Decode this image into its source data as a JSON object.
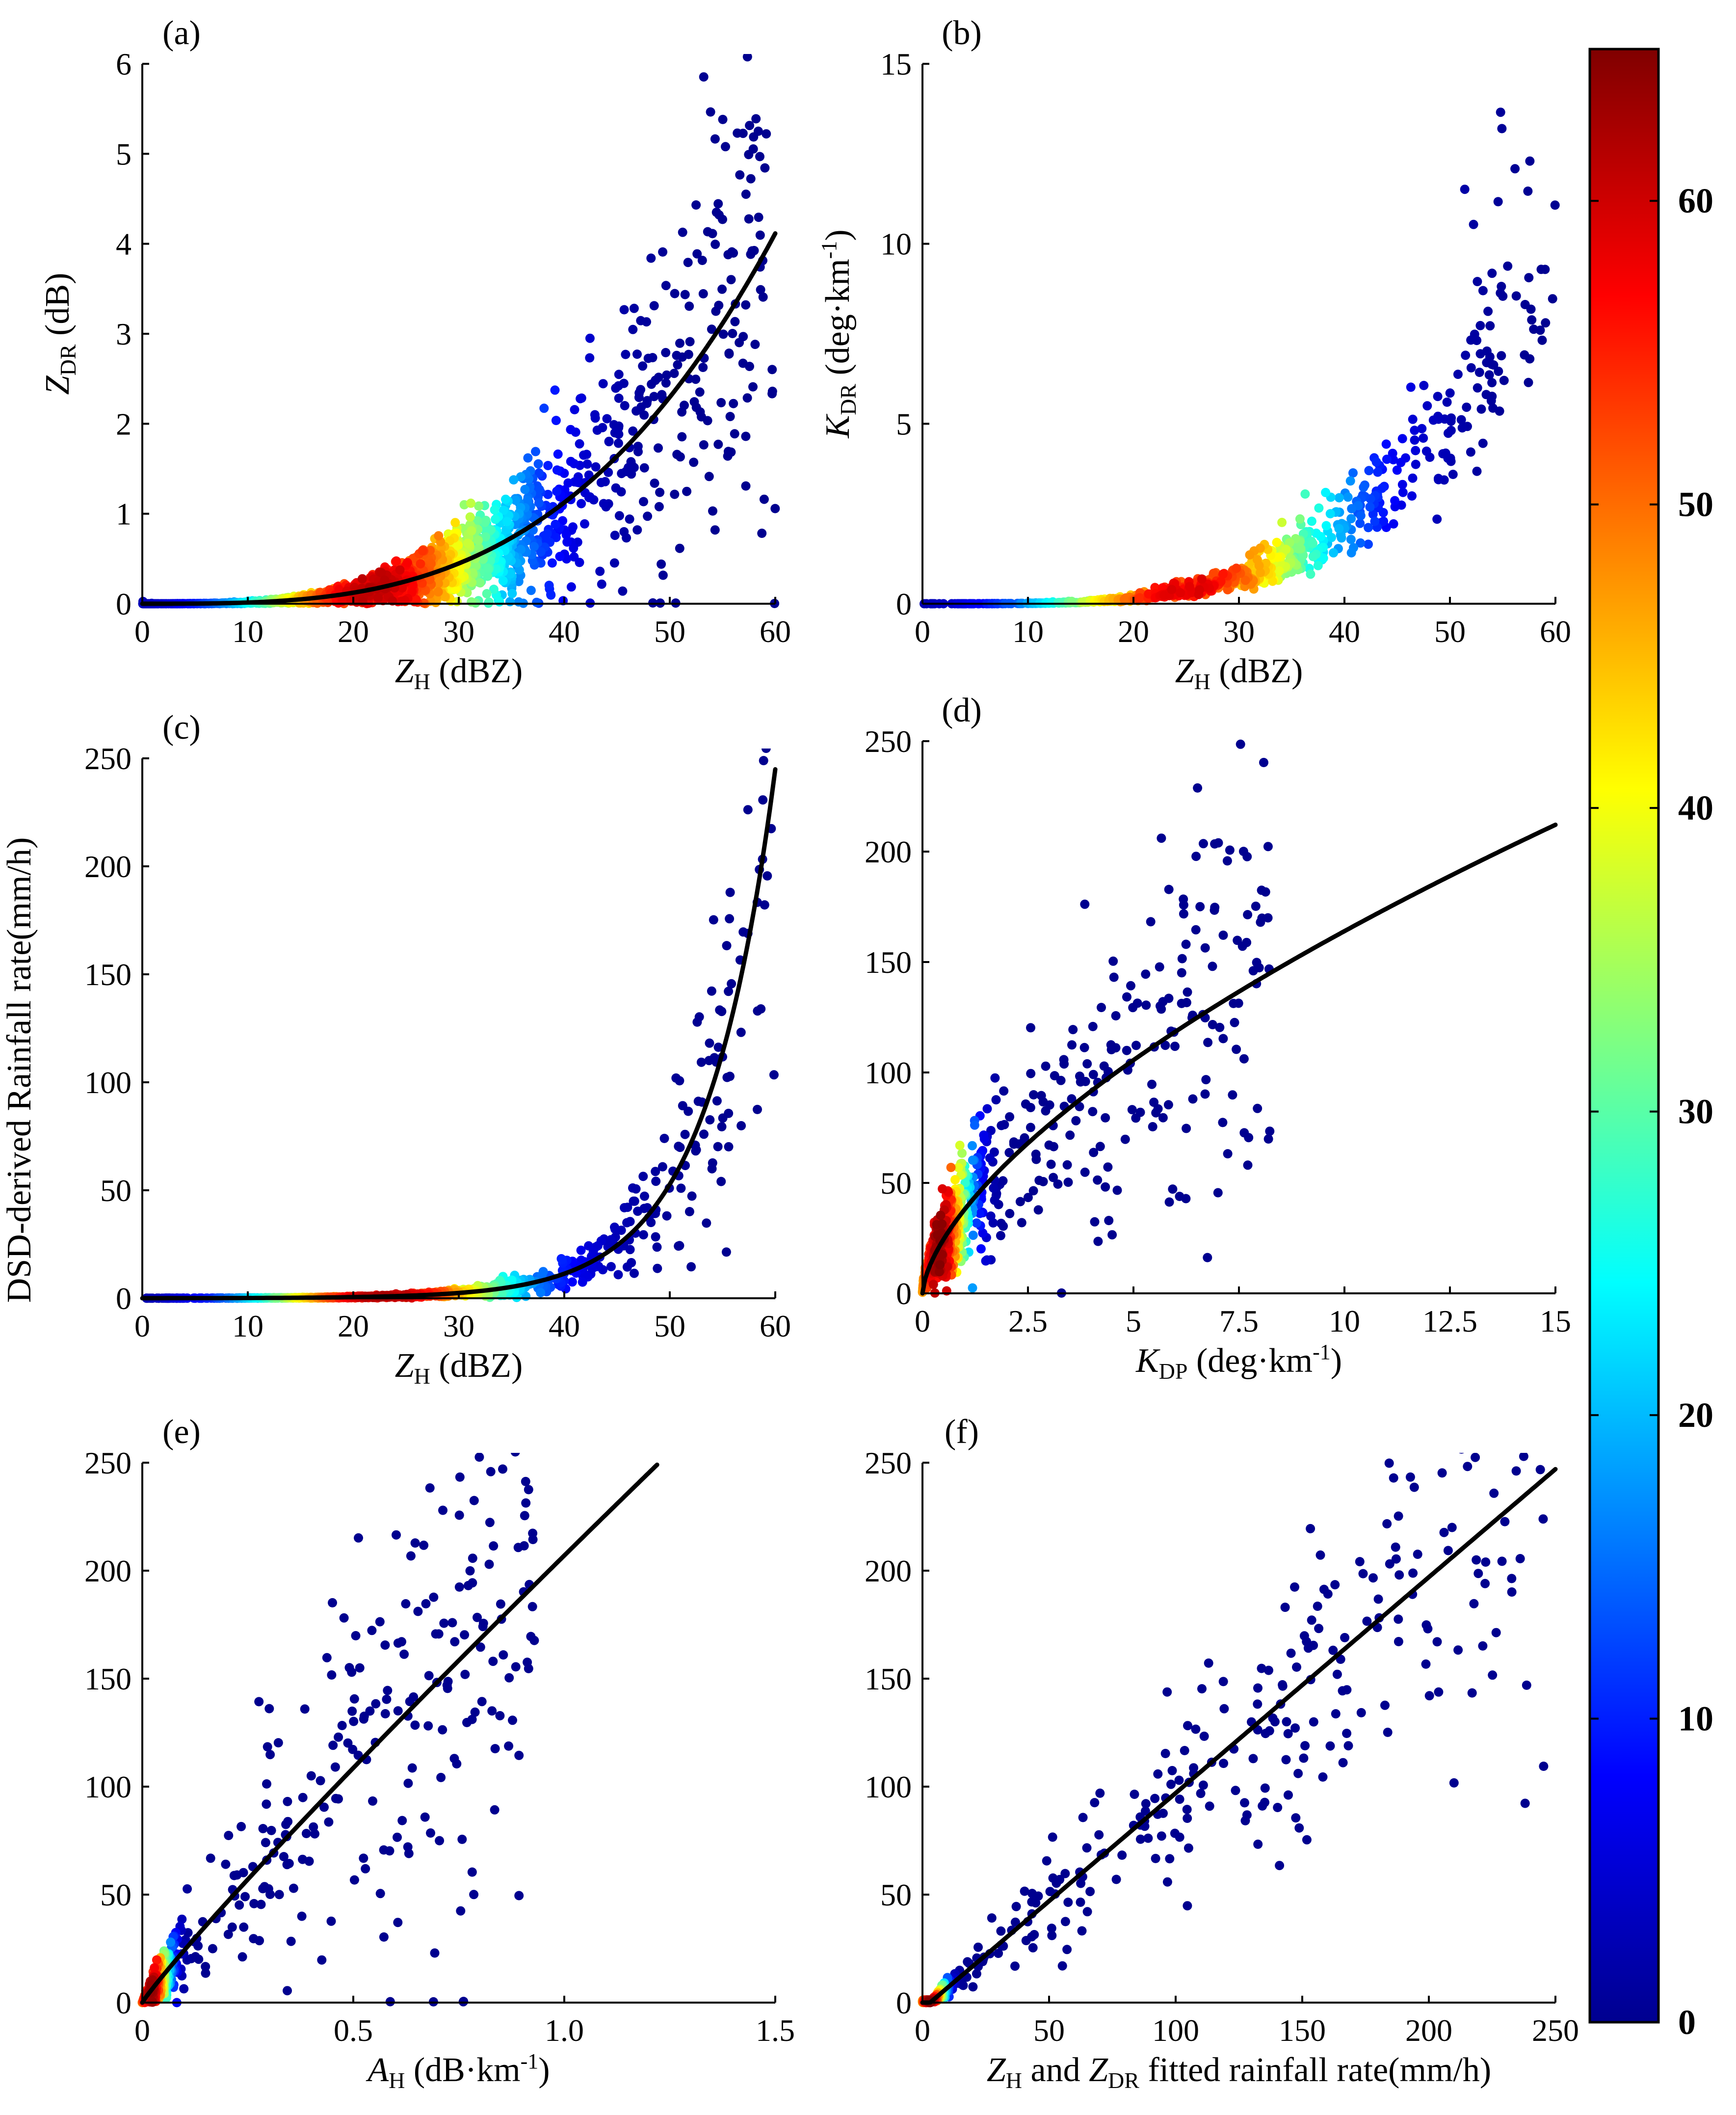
{
  "figure": {
    "shared_ylabel": "DSD-derived Rainfall rate(mm/h)",
    "colorbar": {
      "ticks": [
        0,
        10,
        20,
        30,
        40,
        50,
        60
      ],
      "min": 0,
      "max": 65,
      "stops": [
        "#00008f",
        "#0000ff",
        "#0080ff",
        "#00ffff",
        "#80ff80",
        "#ffff00",
        "#ff8000",
        "#ff0000",
        "#800000"
      ]
    }
  },
  "chart_data": [
    {
      "id": "a",
      "panel_label": "(a)",
      "type": "scatter",
      "xlabel": {
        "main": "Z",
        "sub": "H",
        "rest": " (dBZ)"
      },
      "ylabel": {
        "main": "Z",
        "sub": "DR",
        "rest": " (dB)"
      },
      "xlim": [
        0,
        60
      ],
      "ylim": [
        0,
        6
      ],
      "xticks": [
        0,
        10,
        20,
        30,
        40,
        50,
        60
      ],
      "yticks": [
        0,
        1,
        2,
        3,
        4,
        5,
        6
      ],
      "xtick_labels": [
        "0",
        "10",
        "20",
        "30",
        "40",
        "50",
        "60"
      ],
      "ytick_labels": [
        "0",
        "1",
        "2",
        "3",
        "4",
        "5",
        "6"
      ],
      "fit": {
        "kind": "power",
        "a": 8.4e-06,
        "b": 3.2,
        "offset": 0,
        "xrange": [
          0,
          60
        ]
      },
      "scatter": {
        "seed": 11,
        "n": 2200,
        "x_center": 22,
        "x_spread": 9,
        "spread_kind": "ratio",
        "spread": 0.45,
        "peak_density": 62
      }
    },
    {
      "id": "b",
      "panel_label": "(b)",
      "type": "scatter",
      "xlabel": {
        "main": "Z",
        "sub": "H",
        "rest": " (dBZ)"
      },
      "ylabel": {
        "main": "K",
        "sub": "DR",
        "rest": " (deg·km",
        "sup": "-1",
        "tail": ")"
      },
      "xlim": [
        0,
        60
      ],
      "ylim": [
        0,
        15
      ],
      "xticks": [
        0,
        10,
        20,
        30,
        40,
        50,
        60
      ],
      "yticks": [
        0,
        5,
        10,
        15
      ],
      "xtick_labels": [
        "0",
        "10",
        "20",
        "30",
        "40",
        "50",
        "60"
      ],
      "ytick_labels": [
        "0",
        "5",
        "10",
        "15"
      ],
      "fit": null,
      "scatter": {
        "seed": 23,
        "n": 900,
        "x_center": 25,
        "x_spread": 10,
        "spread_kind": "exp",
        "spread": 0.25,
        "peak_density": 60
      }
    },
    {
      "id": "c",
      "panel_label": "(c)",
      "type": "scatter",
      "xlabel": {
        "main": "Z",
        "sub": "H",
        "rest": " (dBZ)"
      },
      "ylabel": null,
      "xlim": [
        0,
        60
      ],
      "ylim": [
        0,
        250
      ],
      "xticks": [
        0,
        10,
        20,
        30,
        40,
        50,
        60
      ],
      "yticks": [
        0,
        50,
        100,
        150,
        200,
        250
      ],
      "xtick_labels": [
        "0",
        "10",
        "20",
        "30",
        "40",
        "50",
        "60"
      ],
      "ytick_labels": [
        "0",
        "50",
        "100",
        "150",
        "200",
        "250"
      ],
      "fit": {
        "kind": "exp",
        "a": 0.0245,
        "b": 0.1535,
        "offset": 0,
        "xrange": [
          0,
          60
        ]
      },
      "scatter": {
        "seed": 37,
        "n": 1300,
        "x_center": 23,
        "x_spread": 9,
        "spread_kind": "ratio",
        "spread": 0.35,
        "peak_density": 63
      }
    },
    {
      "id": "d",
      "panel_label": "(d)",
      "type": "scatter",
      "xlabel": {
        "main": "K",
        "sub": "DP",
        "rest": " (deg·km",
        "sup": "-1",
        "tail": ")"
      },
      "ylabel": null,
      "xlim": [
        0,
        15
      ],
      "ylim": [
        0,
        250
      ],
      "xticks": [
        0,
        2.5,
        5,
        7.5,
        10,
        12.5,
        15
      ],
      "yticks": [
        0,
        50,
        100,
        150,
        200,
        250
      ],
      "xtick_labels": [
        "0",
        "2.5",
        "5",
        "7.5",
        "10",
        "12.5",
        "15"
      ],
      "ytick_labels": [
        "0",
        "50",
        "100",
        "150",
        "200",
        "250"
      ],
      "fit": {
        "kind": "power",
        "a": 38,
        "b": 0.635,
        "offset": 0,
        "xrange": [
          0,
          15
        ]
      },
      "scatter": {
        "seed": 41,
        "n": 900,
        "x_center": 0.4,
        "x_spread": 0.5,
        "spread_kind": "ratio",
        "spread": 0.35,
        "peak_density": 65
      }
    },
    {
      "id": "e",
      "panel_label": "(e)",
      "type": "scatter",
      "xlabel": {
        "main": "A",
        "sub": "H",
        "rest": " (dB·km",
        "sup": "-1",
        "tail": ")"
      },
      "ylabel": null,
      "xlim": [
        0,
        1.5
      ],
      "ylim": [
        0,
        250
      ],
      "xticks": [
        0,
        0.5,
        1.0,
        1.5
      ],
      "yticks": [
        0,
        50,
        100,
        150,
        200,
        250
      ],
      "xtick_labels": [
        "0",
        "0.5",
        "1.0",
        "1.5"
      ],
      "ytick_labels": [
        "0",
        "50",
        "100",
        "150",
        "200",
        "250"
      ],
      "fit": {
        "kind": "power",
        "a": 207,
        "b": 0.93,
        "offset": 0,
        "xrange": [
          0,
          1.22
        ]
      },
      "scatter": {
        "seed": 53,
        "n": 900,
        "x_center": 0.02,
        "x_spread": 0.03,
        "spread_kind": "ratio",
        "spread": 0.4,
        "peak_density": 64
      }
    },
    {
      "id": "f",
      "panel_label": "(f)",
      "type": "scatter",
      "xlabel": {
        "main": "Z",
        "sub": "H",
        "rest": " and ",
        "main2": "Z",
        "sub2": "DR",
        "rest2": " fitted rainfall rate(mm/h)"
      },
      "ylabel": null,
      "xlim": [
        0,
        250
      ],
      "ylim": [
        0,
        250
      ],
      "xticks": [
        0,
        50,
        100,
        150,
        200,
        250
      ],
      "yticks": [
        0,
        50,
        100,
        150,
        200,
        250
      ],
      "xtick_labels": [
        "0",
        "50",
        "100",
        "150",
        "200",
        "250"
      ],
      "ytick_labels": [
        "0",
        "50",
        "100",
        "150",
        "200",
        "250"
      ],
      "fit": {
        "kind": "linear",
        "a": 1.0,
        "b": 1,
        "offset": -3,
        "xrange": [
          0,
          250
        ]
      },
      "scatter": {
        "seed": 67,
        "n": 900,
        "x_center": 3,
        "x_spread": 4,
        "spread_kind": "ratio",
        "spread": 0.25,
        "peak_density": 65
      }
    }
  ]
}
